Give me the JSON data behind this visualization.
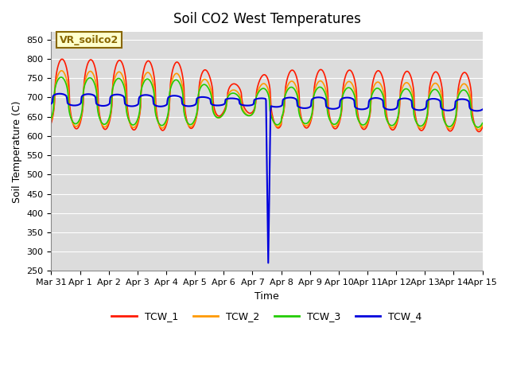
{
  "title": "Soil CO2 West Temperatures",
  "ylabel": "Soil Temperature (C)",
  "xlabel": "Time",
  "ylim": [
    250,
    870
  ],
  "yticks": [
    250,
    300,
    350,
    400,
    450,
    500,
    550,
    600,
    650,
    700,
    750,
    800,
    850
  ],
  "bg_color": "#dcdcdc",
  "grid_color": "#ffffff",
  "line_colors": {
    "TCW_1": "#ff1a00",
    "TCW_2": "#ff9900",
    "TCW_3": "#22cc00",
    "TCW_4": "#0000dd"
  },
  "annotation_label": "VR_soilco2",
  "annotation_color": "#886600",
  "annotation_bg": "#ffffcc",
  "tick_fontsize": 8,
  "label_fontsize": 9,
  "title_fontsize": 12
}
